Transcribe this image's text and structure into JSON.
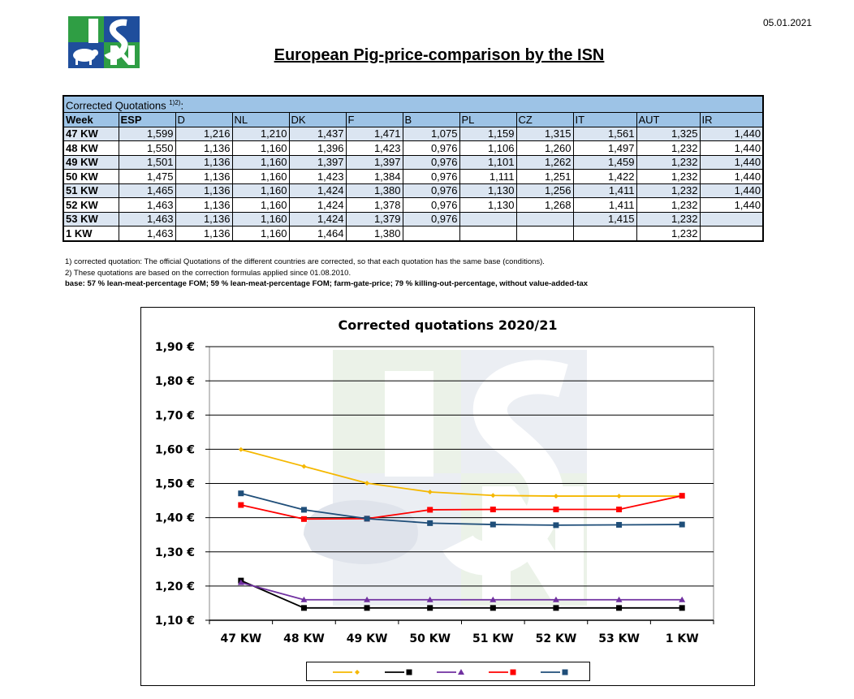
{
  "header": {
    "logo_text": "ISN",
    "date": "05.01.2021",
    "title": "European Pig-price-comparison by the ISN"
  },
  "table": {
    "caption": "Corrected Quotations",
    "caption_sup": "1)2)",
    "caption_suffix": ":",
    "columns": [
      "Week",
      "ESP",
      "D",
      "NL",
      "DK",
      "F",
      "B",
      "PL",
      "CZ",
      "IT",
      "AUT",
      "IR"
    ],
    "rows": [
      [
        "47 KW",
        "1,599",
        "1,216",
        "1,210",
        "1,437",
        "1,471",
        "1,075",
        "1,159",
        "1,315",
        "1,561",
        "1,325",
        "1,440"
      ],
      [
        "48 KW",
        "1,550",
        "1,136",
        "1,160",
        "1,396",
        "1,423",
        "0,976",
        "1,106",
        "1,260",
        "1,497",
        "1,232",
        "1,440"
      ],
      [
        "49 KW",
        "1,501",
        "1,136",
        "1,160",
        "1,397",
        "1,397",
        "0,976",
        "1,101",
        "1,262",
        "1,459",
        "1,232",
        "1,440"
      ],
      [
        "50 KW",
        "1,475",
        "1,136",
        "1,160",
        "1,423",
        "1,384",
        "0,976",
        "1,111",
        "1,251",
        "1,422",
        "1,232",
        "1,440"
      ],
      [
        "51 KW",
        "1,465",
        "1,136",
        "1,160",
        "1,424",
        "1,380",
        "0,976",
        "1,130",
        "1,256",
        "1,411",
        "1,232",
        "1,440"
      ],
      [
        "52 KW",
        "1,463",
        "1,136",
        "1,160",
        "1,424",
        "1,378",
        "0,976",
        "1,130",
        "1,268",
        "1,411",
        "1,232",
        "1,440"
      ],
      [
        "53 KW",
        "1,463",
        "1,136",
        "1,160",
        "1,424",
        "1,379",
        "0,976",
        "",
        "",
        "1,415",
        "1,232",
        ""
      ],
      [
        "1 KW",
        "1,463",
        "1,136",
        "1,160",
        "1,464",
        "1,380",
        "",
        "",
        "",
        "",
        "1,232",
        ""
      ]
    ]
  },
  "notes": {
    "note1": "1) corrected quotation: The official Quotations of the different countries are corrected, so that each quotation has the same base (conditions).",
    "note2": "2) These quotations are based on the correction formulas applied since 01.08.2010.",
    "base": "base: 57 % lean-meat-percentage FOM; 59 % lean-meat-percentage FOM; farm-gate-price; 79 % killing-out-percentage, without value-added-tax"
  },
  "chart_data": {
    "type": "line",
    "title": "Corrected quotations 2020/21",
    "categories": [
      "47 KW",
      "48 KW",
      "49 KW",
      "50 KW",
      "51 KW",
      "52 KW",
      "53 KW",
      "1 KW"
    ],
    "y_tick_labels": [
      "1,10 €",
      "1,20 €",
      "1,30 €",
      "1,40 €",
      "1,50 €",
      "1,60 €",
      "1,70 €",
      "1,80 €",
      "1,90 €"
    ],
    "ylim": [
      1.1,
      1.9
    ],
    "y_step": 0.1,
    "grid": "horizontal",
    "legend_position": "bottom",
    "series": [
      {
        "color": "#f5b800",
        "marker": "diamond",
        "values": [
          1.599,
          1.55,
          1.501,
          1.475,
          1.465,
          1.463,
          1.463,
          1.463
        ]
      },
      {
        "color": "#000000",
        "marker": "square",
        "values": [
          1.216,
          1.136,
          1.136,
          1.136,
          1.136,
          1.136,
          1.136,
          1.136
        ]
      },
      {
        "color": "#7030a0",
        "marker": "triangle",
        "values": [
          1.21,
          1.16,
          1.16,
          1.16,
          1.16,
          1.16,
          1.16,
          1.16
        ]
      },
      {
        "color": "#ff0000",
        "marker": "square",
        "values": [
          1.437,
          1.396,
          1.397,
          1.423,
          1.424,
          1.424,
          1.424,
          1.464
        ]
      },
      {
        "color": "#1f4e79",
        "marker": "square",
        "values": [
          1.471,
          1.423,
          1.397,
          1.384,
          1.38,
          1.378,
          1.379,
          1.38
        ]
      }
    ]
  }
}
